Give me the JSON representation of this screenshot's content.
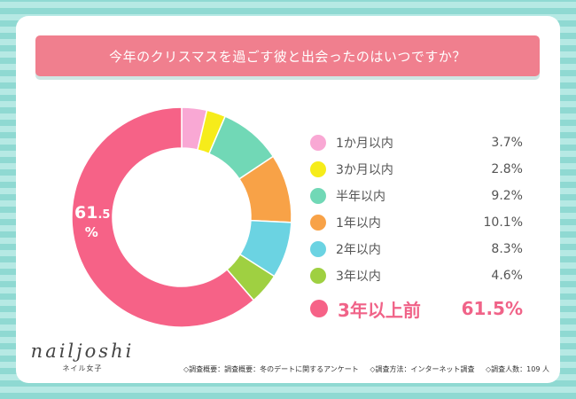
{
  "title": "今年のクリスマスを過ごす彼と出会ったのはいつですか？",
  "chart_data": {
    "type": "pie",
    "categories": [
      "1か月以内",
      "3か月以内",
      "半年以内",
      "1年以内",
      "2年以内",
      "3年以内",
      "3年以上前"
    ],
    "values": [
      3.7,
      2.8,
      9.2,
      10.1,
      8.3,
      4.6,
      61.5
    ],
    "value_labels": [
      "3.7%",
      "2.8%",
      "9.2%",
      "10.1%",
      "8.3%",
      "4.6%",
      "61.5%"
    ],
    "colors": [
      "#f9a8d4",
      "#f6ec1a",
      "#71d8b6",
      "#f8a247",
      "#6bd3e2",
      "#9fd041",
      "#f66287"
    ],
    "donut": true,
    "highlight_index": 6,
    "slice_label": {
      "int": "61",
      "dec": ".5",
      "unit": "%"
    }
  },
  "logo": {
    "main": "nailjoshi",
    "sub": "ネイル女子"
  },
  "footer": {
    "survey": "◇調査概要：調査概要：冬のデートに関するアンケート",
    "method": "◇調査方法：インターネット調査",
    "count": "◇調査人数：109 人"
  }
}
